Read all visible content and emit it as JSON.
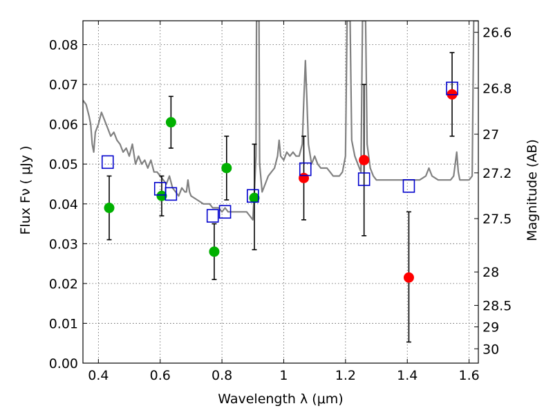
{
  "chart_data": {
    "type": "scatter",
    "xlabel": "Wavelength  λ (μm)",
    "ylabel": "Flux  Fν  ( μJy )",
    "ylabel_right": "Magnitude (AB)",
    "xlim": [
      0.35,
      1.63
    ],
    "ylim": [
      0.0,
      0.086
    ],
    "grid": true,
    "x_ticks": [
      0.4,
      0.6,
      0.8,
      1.0,
      1.2,
      1.4,
      1.6
    ],
    "x_tick_labels": [
      "0.4",
      "0.6",
      "0.8",
      "1",
      "1.2",
      "1.4",
      "1.6"
    ],
    "y_ticks": [
      0.0,
      0.01,
      0.02,
      0.03,
      0.04,
      0.05,
      0.06,
      0.07,
      0.08
    ],
    "y_tick_labels": [
      "0.00",
      "0.01",
      "0.02",
      "0.03",
      "0.04",
      "0.05",
      "0.06",
      "0.07",
      "0.08"
    ],
    "right_ticks": [
      {
        "label": "26.6",
        "flux": 0.0831
      },
      {
        "label": "26.8",
        "flux": 0.0691
      },
      {
        "label": "27",
        "flux": 0.0575
      },
      {
        "label": "27.2",
        "flux": 0.0478
      },
      {
        "label": "27.5",
        "flux": 0.0363
      },
      {
        "label": "28",
        "flux": 0.0229
      },
      {
        "label": "28.5",
        "flux": 0.0145
      },
      {
        "label": "29",
        "flux": 0.0091
      },
      {
        "label": "30",
        "flux": 0.0036
      }
    ],
    "series": [
      {
        "kind": "line",
        "color": "#808080",
        "points": [
          [
            0.35,
            0.066
          ],
          [
            0.36,
            0.065
          ],
          [
            0.37,
            0.062
          ],
          [
            0.375,
            0.06
          ],
          [
            0.38,
            0.055
          ],
          [
            0.385,
            0.053
          ],
          [
            0.39,
            0.058
          ],
          [
            0.4,
            0.06
          ],
          [
            0.41,
            0.063
          ],
          [
            0.42,
            0.061
          ],
          [
            0.43,
            0.059
          ],
          [
            0.44,
            0.057
          ],
          [
            0.45,
            0.058
          ],
          [
            0.46,
            0.056
          ],
          [
            0.47,
            0.055
          ],
          [
            0.48,
            0.053
          ],
          [
            0.49,
            0.054
          ],
          [
            0.5,
            0.052
          ],
          [
            0.51,
            0.055
          ],
          [
            0.52,
            0.05
          ],
          [
            0.53,
            0.052
          ],
          [
            0.54,
            0.05
          ],
          [
            0.55,
            0.051
          ],
          [
            0.56,
            0.049
          ],
          [
            0.57,
            0.051
          ],
          [
            0.58,
            0.048
          ],
          [
            0.59,
            0.048
          ],
          [
            0.6,
            0.047
          ],
          [
            0.61,
            0.046
          ],
          [
            0.62,
            0.045
          ],
          [
            0.63,
            0.047
          ],
          [
            0.64,
            0.044
          ],
          [
            0.65,
            0.043
          ],
          [
            0.66,
            0.042
          ],
          [
            0.67,
            0.044
          ],
          [
            0.68,
            0.043
          ],
          [
            0.685,
            0.043
          ],
          [
            0.69,
            0.046
          ],
          [
            0.695,
            0.043
          ],
          [
            0.7,
            0.042
          ],
          [
            0.72,
            0.041
          ],
          [
            0.74,
            0.04
          ],
          [
            0.76,
            0.04
          ],
          [
            0.77,
            0.039
          ],
          [
            0.79,
            0.039
          ],
          [
            0.8,
            0.038
          ],
          [
            0.81,
            0.039
          ],
          [
            0.82,
            0.038
          ],
          [
            0.84,
            0.038
          ],
          [
            0.86,
            0.038
          ],
          [
            0.88,
            0.038
          ],
          [
            0.89,
            0.037
          ],
          [
            0.9,
            0.036
          ],
          [
            0.905,
            0.043
          ],
          [
            0.91,
            0.052
          ],
          [
            0.912,
            0.086
          ],
          [
            0.92,
            0.086
          ],
          [
            0.922,
            0.05
          ],
          [
            0.93,
            0.043
          ],
          [
            0.94,
            0.045
          ],
          [
            0.95,
            0.047
          ],
          [
            0.96,
            0.048
          ],
          [
            0.97,
            0.049
          ],
          [
            0.98,
            0.052
          ],
          [
            0.985,
            0.056
          ],
          [
            0.99,
            0.052
          ],
          [
            1.0,
            0.051
          ],
          [
            1.01,
            0.053
          ],
          [
            1.02,
            0.052
          ],
          [
            1.03,
            0.053
          ],
          [
            1.04,
            0.052
          ],
          [
            1.05,
            0.052
          ],
          [
            1.06,
            0.055
          ],
          [
            1.065,
            0.066
          ],
          [
            1.07,
            0.076
          ],
          [
            1.075,
            0.066
          ],
          [
            1.08,
            0.055
          ],
          [
            1.09,
            0.05
          ],
          [
            1.1,
            0.052
          ],
          [
            1.11,
            0.05
          ],
          [
            1.12,
            0.049
          ],
          [
            1.13,
            0.049
          ],
          [
            1.14,
            0.049
          ],
          [
            1.15,
            0.048
          ],
          [
            1.16,
            0.047
          ],
          [
            1.17,
            0.047
          ],
          [
            1.18,
            0.047
          ],
          [
            1.19,
            0.048
          ],
          [
            1.2,
            0.052
          ],
          [
            1.205,
            0.086
          ],
          [
            1.215,
            0.086
          ],
          [
            1.22,
            0.056
          ],
          [
            1.23,
            0.052
          ],
          [
            1.24,
            0.05
          ],
          [
            1.25,
            0.048
          ],
          [
            1.255,
            0.086
          ],
          [
            1.265,
            0.086
          ],
          [
            1.27,
            0.055
          ],
          [
            1.28,
            0.049
          ],
          [
            1.29,
            0.047
          ],
          [
            1.3,
            0.046
          ],
          [
            1.31,
            0.046
          ],
          [
            1.33,
            0.046
          ],
          [
            1.35,
            0.046
          ],
          [
            1.37,
            0.046
          ],
          [
            1.39,
            0.046
          ],
          [
            1.4,
            0.046
          ],
          [
            1.42,
            0.046
          ],
          [
            1.44,
            0.046
          ],
          [
            1.46,
            0.047
          ],
          [
            1.47,
            0.049
          ],
          [
            1.48,
            0.047
          ],
          [
            1.5,
            0.046
          ],
          [
            1.52,
            0.046
          ],
          [
            1.54,
            0.046
          ],
          [
            1.55,
            0.047
          ],
          [
            1.56,
            0.053
          ],
          [
            1.565,
            0.048
          ],
          [
            1.57,
            0.046
          ],
          [
            1.58,
            0.046
          ],
          [
            1.59,
            0.046
          ],
          [
            1.6,
            0.046
          ],
          [
            1.61,
            0.047
          ],
          [
            1.615,
            0.086
          ],
          [
            1.63,
            0.086
          ]
        ]
      },
      {
        "kind": "points",
        "marker": "circle",
        "color": "#00b000",
        "points": [
          {
            "x": 0.435,
            "y": 0.039,
            "err": [
              0.031,
              0.047
            ]
          },
          {
            "x": 0.605,
            "y": 0.042,
            "err": [
              0.037,
              0.047
            ]
          },
          {
            "x": 0.635,
            "y": 0.0605,
            "err": [
              0.054,
              0.067
            ]
          },
          {
            "x": 0.775,
            "y": 0.028,
            "err": [
              0.021,
              0.035
            ]
          },
          {
            "x": 0.815,
            "y": 0.049,
            "err": [
              0.041,
              0.057
            ]
          },
          {
            "x": 0.905,
            "y": 0.0415,
            "err": [
              0.0285,
              0.055
            ]
          }
        ]
      },
      {
        "kind": "points",
        "marker": "circle",
        "color": "#ff0000",
        "points": [
          {
            "x": 1.065,
            "y": 0.0465,
            "err": [
              0.036,
              0.057
            ]
          },
          {
            "x": 1.26,
            "y": 0.051,
            "err": [
              0.032,
              0.07
            ]
          },
          {
            "x": 1.405,
            "y": 0.0215,
            "err": [
              0.0053,
              0.038
            ]
          },
          {
            "x": 1.545,
            "y": 0.0675,
            "err": [
              0.057,
              0.078
            ]
          }
        ]
      },
      {
        "kind": "points",
        "marker": "square-open",
        "color": "#0000cc",
        "points": [
          {
            "x": 0.43,
            "y": 0.0505
          },
          {
            "x": 0.6,
            "y": 0.0438
          },
          {
            "x": 0.635,
            "y": 0.0425
          },
          {
            "x": 0.77,
            "y": 0.037
          },
          {
            "x": 0.81,
            "y": 0.038
          },
          {
            "x": 0.9,
            "y": 0.042
          },
          {
            "x": 1.07,
            "y": 0.0487
          },
          {
            "x": 1.26,
            "y": 0.0462
          },
          {
            "x": 1.405,
            "y": 0.0445
          },
          {
            "x": 1.545,
            "y": 0.069
          }
        ]
      }
    ]
  }
}
